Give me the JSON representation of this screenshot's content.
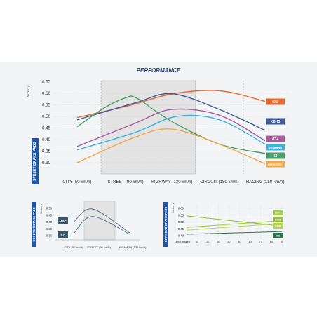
{
  "page": {
    "title": "PERFORMANCE"
  },
  "colors": {
    "cm": "#e8692e",
    "xbk5": "#3f5a98",
    "a3": "#a85c9c",
    "genuine": "#3db3e0",
    "s4": "#47a169",
    "organic": "#f2a74a",
    "side_label_bg": "#1f56a8",
    "small_line": "#4c6a86",
    "small_badge": "#3d5670",
    "hh": "#9cce3f",
    "hf": "#b7d45a",
    "hs": "#9cbc3c",
    "xs": "#2f6e4b",
    "band": "#e3e3e3"
  },
  "icons": {
    "grid": "dashed-grid-lines"
  },
  "chart_data": [
    {
      "name": "street",
      "type": "line",
      "side_label": "STREET BRAKE PADS",
      "ylabel": "friction µ",
      "ylim": [
        0.3,
        0.6
      ],
      "yticks": [
        "0.60",
        "0.55",
        "0.50",
        "0.45",
        "0.40",
        "0.35",
        "0.30"
      ],
      "yticks_extra": [
        "0.65"
      ],
      "categories": [
        "CITY (50 km/h)",
        "STREET (90 km/h)",
        "HIGHWAY (130 km/h)",
        "CIRCUIT (180 km/h)",
        "RACING (250 km/h)"
      ],
      "highlight_band": [
        "STREET (90 km/h)",
        "HIGHWAY (130 km/h)"
      ],
      "grid": true,
      "series": [
        {
          "name": "CM",
          "points": [
            [
              0,
              0.495
            ],
            [
              1.1,
              0.548
            ],
            [
              2.0,
              0.597
            ],
            [
              3.0,
              0.611
            ],
            [
              4.0,
              0.565
            ]
          ]
        },
        {
          "name": "XBK5",
          "points": [
            [
              0,
              0.485
            ],
            [
              1.2,
              0.558
            ],
            [
              2.0,
              0.598
            ],
            [
              3.0,
              0.53
            ],
            [
              4.0,
              0.44
            ]
          ]
        },
        {
          "name": "A3+",
          "points": [
            [
              0,
              0.37
            ],
            [
              1.2,
              0.47
            ],
            [
              2.0,
              0.53
            ],
            [
              3.0,
              0.505
            ],
            [
              4.0,
              0.395
            ]
          ]
        },
        {
          "name": "GENUINE",
          "points": [
            [
              0,
              0.355
            ],
            [
              1.2,
              0.43
            ],
            [
              2.1,
              0.5
            ],
            [
              3.0,
              0.485
            ],
            [
              4.0,
              0.38
            ]
          ]
        },
        {
          "name": "S4",
          "points": [
            [
              0,
              0.455
            ],
            [
              0.55,
              0.535
            ],
            [
              1.0,
              0.58
            ],
            [
              1.25,
              0.578
            ],
            [
              2.0,
              0.478
            ],
            [
              3.0,
              0.38
            ],
            [
              4.0,
              0.34
            ]
          ]
        },
        {
          "name": "ORGANIC",
          "points": [
            [
              0,
              0.3
            ],
            [
              1.2,
              0.41
            ],
            [
              2.0,
              0.445
            ],
            [
              3.0,
              0.38
            ],
            [
              4.0,
              0.295
            ]
          ]
        }
      ]
    },
    {
      "name": "scooter",
      "type": "line",
      "side_label": "SCOOTER BRAKE PADS",
      "ylabel": "friction µ",
      "ylim": [
        0.3,
        0.55
      ],
      "yticks": [
        "0.50",
        "0.45",
        "0.40",
        "0.35",
        "0.30"
      ],
      "categories": [
        "CITY (50 km/h)",
        "STREET (90 km/h)",
        "HIGHWAY (130 km/h)"
      ],
      "highlight_band": [
        "STREET (90 km/h)"
      ],
      "grid": false,
      "series": [
        {
          "name": "MSC",
          "points": [
            [
              0,
              0.4
            ],
            [
              0.75,
              0.495
            ],
            [
              2.0,
              0.32
            ]
          ]
        },
        {
          "name": "SC",
          "points": [
            [
              0,
              0.315
            ],
            [
              0.75,
              0.44
            ],
            [
              2.0,
              0.31
            ]
          ]
        }
      ]
    },
    {
      "name": "offroad",
      "type": "line",
      "side_label": "OFF-ROAD BRAKE PADS",
      "ylabel": "friction µ",
      "ylim": [
        0.4,
        0.6
      ],
      "yticks": [
        "0.60",
        "0.55",
        "0.50",
        "0.45",
        "0.40"
      ],
      "x": [
        "Linear braking",
        "10",
        "20",
        "30",
        "40",
        "50",
        "60",
        "70",
        "80",
        "90"
      ],
      "grid": true,
      "series": [
        {
          "name": "SIHH",
          "points": [
            [
              0,
              0.46
            ],
            [
              9,
              0.51
            ]
          ]
        },
        {
          "name": "SIHF",
          "points": [
            [
              0,
              0.44
            ],
            [
              9,
              0.49
            ]
          ]
        },
        {
          "name": "SIHS",
          "points": [
            [
              0,
              0.545
            ],
            [
              9,
              0.47
            ]
          ]
        },
        {
          "name": "XS",
          "points": [
            [
              0,
              0.41
            ],
            [
              9,
              0.43
            ]
          ]
        }
      ]
    }
  ]
}
